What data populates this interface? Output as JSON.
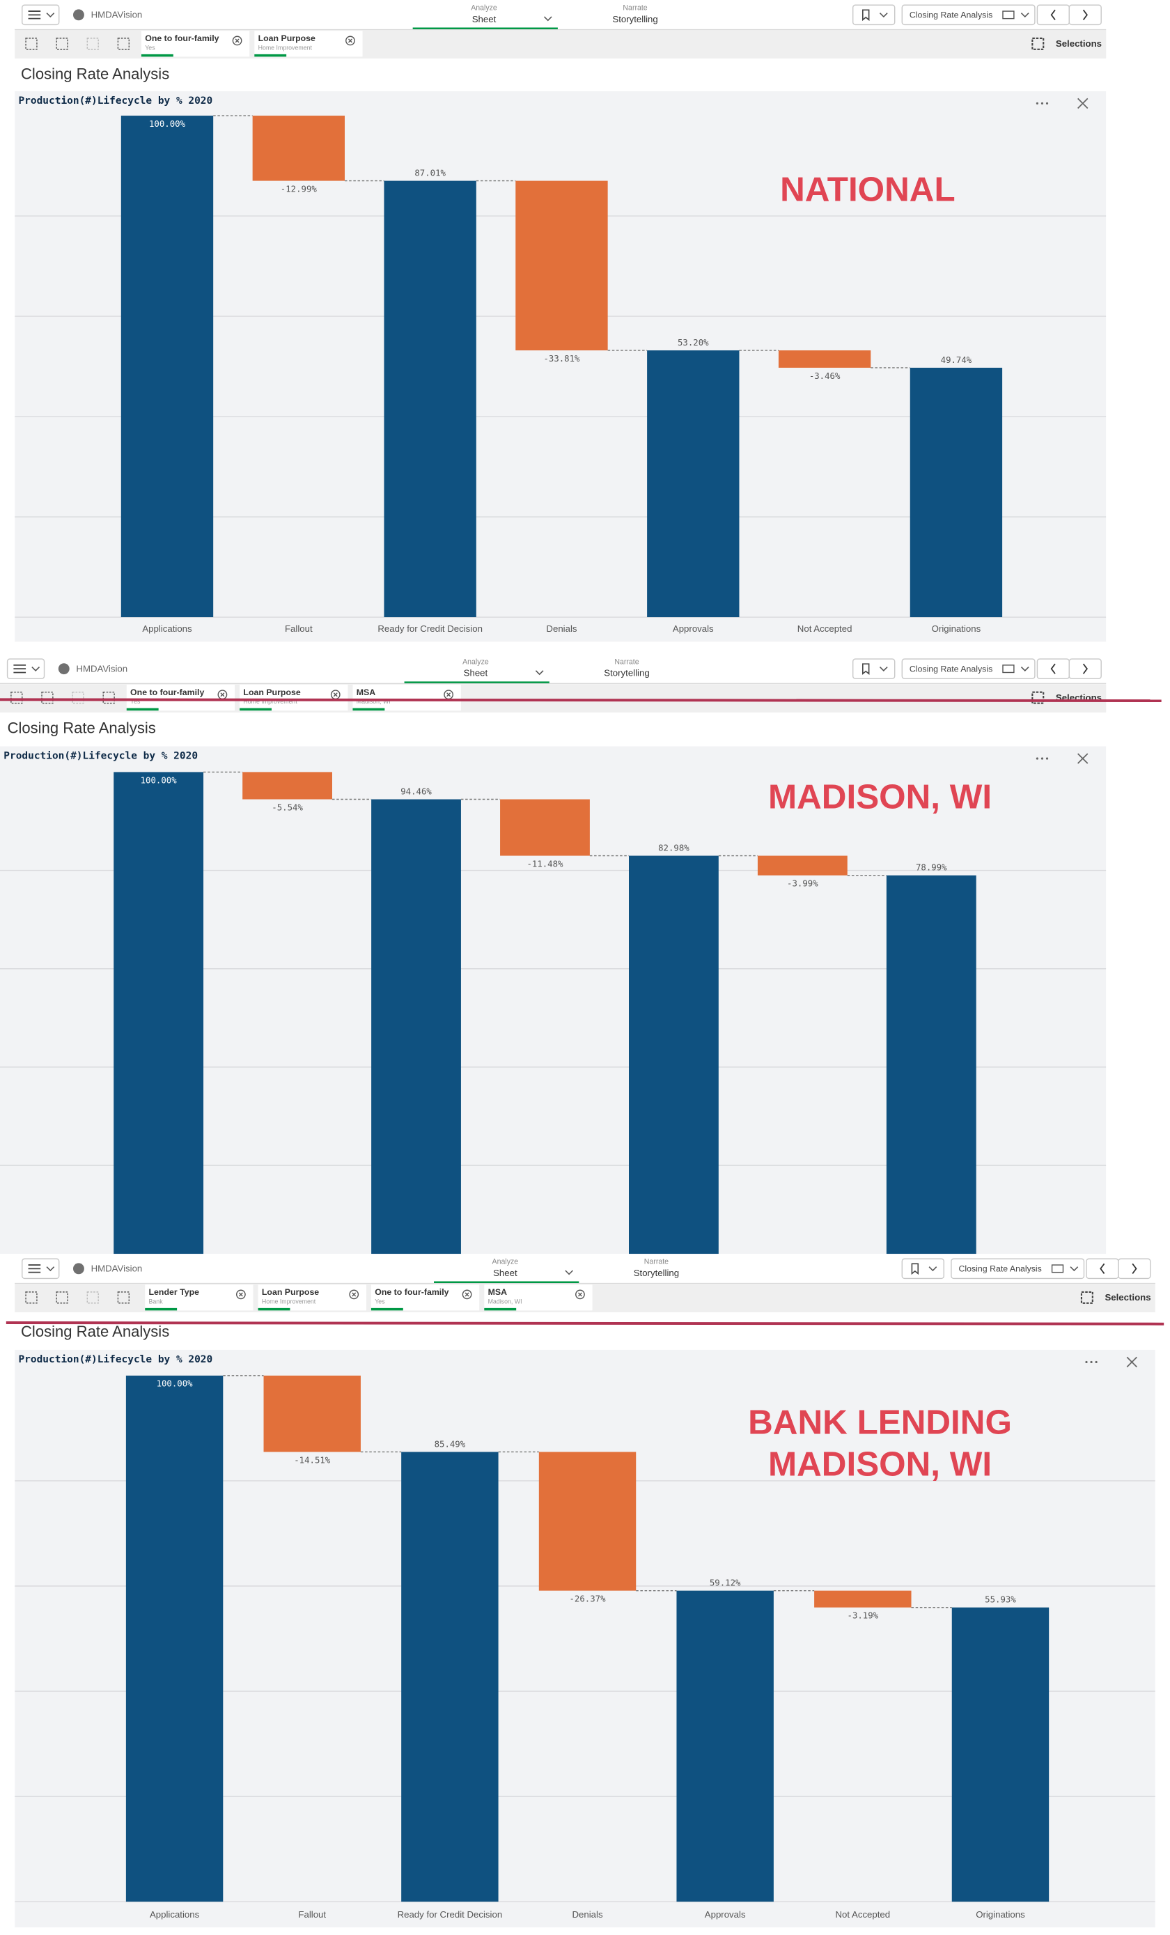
{
  "panels": [
    {
      "toolbar": {
        "app": "HMDAVision",
        "modes": [
          {
            "label": "Analyze",
            "value": "Sheet"
          },
          {
            "label": "Narrate",
            "value": "Storytelling"
          }
        ],
        "sheet": "Closing Rate Analysis"
      },
      "selections": [
        {
          "field": "One to four-family",
          "value": "Yes"
        },
        {
          "field": "Loan Purpose",
          "value": "Home Improvement"
        }
      ],
      "selections_label": "Selections",
      "heading": "Closing Rate Analysis"
    },
    {
      "toolbar": {
        "app": "HMDAVision",
        "modes": [
          {
            "label": "Analyze",
            "value": "Sheet"
          },
          {
            "label": "Narrate",
            "value": "Storytelling"
          }
        ],
        "sheet": "Closing Rate Analysis"
      },
      "selections": [
        {
          "field": "One to four-family",
          "value": "Yes"
        },
        {
          "field": "Loan Purpose",
          "value": "Home Improvement"
        },
        {
          "field": "MSA",
          "value": "Madison, WI"
        }
      ],
      "selections_label": "Selections",
      "heading": "Closing Rate Analysis"
    },
    {
      "toolbar": {
        "app": "HMDAVision",
        "modes": [
          {
            "label": "Analyze",
            "value": "Sheet"
          },
          {
            "label": "Narrate",
            "value": "Storytelling"
          }
        ],
        "sheet": "Closing Rate Analysis"
      },
      "selections": [
        {
          "field": "Lender Type",
          "value": "Bank"
        },
        {
          "field": "Loan Purpose",
          "value": "Home Improvement"
        },
        {
          "field": "One to four-family",
          "value": "Yes"
        },
        {
          "field": "MSA",
          "value": "Madison, WI"
        }
      ],
      "selections_label": "Selections",
      "heading": "Closing Rate Analysis"
    }
  ],
  "chart_data": [
    {
      "type": "waterfall",
      "title": "Production(#)Lifecycle by % 2020",
      "annotation": [
        "NATIONAL"
      ],
      "categories": [
        "Applications",
        "Fallout",
        "Ready for Credit Decision",
        "Denials",
        "Approvals",
        "Not Accepted",
        "Originations"
      ],
      "values": [
        100,
        -12.99,
        87.01,
        -33.81,
        53.2,
        -3.46,
        49.74
      ],
      "value_labels": [
        "100.00%",
        "-12.99%",
        "87.01%",
        "-33.81%",
        "53.20%",
        "-3.46%",
        "49.74%"
      ],
      "total_color": "#0f5180",
      "decrease_color": "#e2703a",
      "ylim": [
        0,
        100
      ],
      "yticks": [
        0,
        20,
        40,
        60,
        80
      ],
      "grid": true
    },
    {
      "type": "waterfall",
      "title": "Production(#)Lifecycle by % 2020",
      "annotation": [
        "MADISON, WI"
      ],
      "values": [
        100,
        -5.54,
        94.46,
        -11.48,
        82.98,
        -3.99,
        78.99
      ],
      "value_labels": [
        "100.00%",
        "-5.54%",
        "94.46%",
        "-11.48%",
        "82.98%",
        "-3.99%",
        "78.99%"
      ],
      "total_color": "#0f5180",
      "decrease_color": "#e2703a",
      "ylim": [
        0,
        100
      ],
      "yticks": [
        0,
        20,
        40,
        60,
        80
      ],
      "grid": true
    },
    {
      "type": "waterfall",
      "title": "Production(#)Lifecycle by % 2020",
      "annotation": [
        "BANK LENDING",
        "MADISON, WI"
      ],
      "categories": [
        "Applications",
        "Fallout",
        "Ready for Credit Decision",
        "Denials",
        "Approvals",
        "Not Accepted",
        "Originations"
      ],
      "values": [
        100,
        -14.51,
        85.49,
        -26.37,
        59.12,
        -3.19,
        55.93
      ],
      "value_labels": [
        "100.00%",
        "-14.51%",
        "85.49%",
        "-26.37%",
        "59.12%",
        "-3.19%",
        "55.93%"
      ],
      "total_color": "#0f5180",
      "decrease_color": "#e2703a",
      "ylim": [
        0,
        100
      ],
      "yticks": [
        0,
        20,
        40,
        60,
        80
      ],
      "grid": true
    }
  ]
}
